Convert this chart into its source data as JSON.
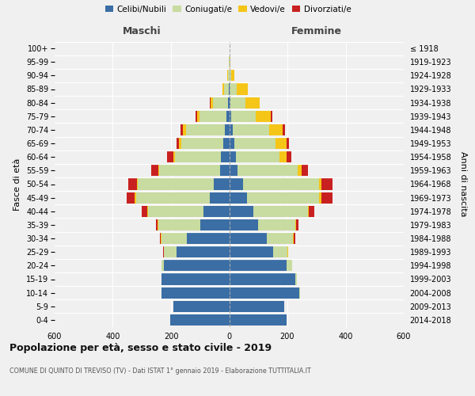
{
  "age_groups": [
    "100+",
    "95-99",
    "90-94",
    "85-89",
    "80-84",
    "75-79",
    "70-74",
    "65-69",
    "60-64",
    "55-59",
    "50-54",
    "45-49",
    "40-44",
    "35-39",
    "30-34",
    "25-29",
    "20-24",
    "15-19",
    "10-14",
    "5-9",
    "0-4"
  ],
  "birth_years": [
    "≤ 1918",
    "1919-1923",
    "1924-1928",
    "1929-1933",
    "1934-1938",
    "1939-1943",
    "1944-1948",
    "1949-1953",
    "1954-1958",
    "1959-1963",
    "1964-1968",
    "1969-1973",
    "1974-1978",
    "1979-1983",
    "1984-1988",
    "1989-1993",
    "1994-1998",
    "1999-2003",
    "2004-2008",
    "2009-2013",
    "2014-2018"
  ],
  "maschi": {
    "celibi": [
      0,
      0,
      0,
      2,
      4,
      10,
      16,
      20,
      28,
      32,
      52,
      68,
      88,
      98,
      145,
      182,
      225,
      232,
      232,
      192,
      202
    ],
    "coniugati": [
      0,
      1,
      5,
      15,
      52,
      92,
      132,
      145,
      158,
      208,
      262,
      252,
      192,
      145,
      88,
      42,
      8,
      2,
      0,
      0,
      0
    ],
    "vedovi": [
      0,
      0,
      1,
      5,
      8,
      8,
      10,
      8,
      5,
      4,
      4,
      4,
      2,
      2,
      2,
      1,
      0,
      0,
      0,
      0,
      0
    ],
    "divorziati": [
      0,
      0,
      0,
      0,
      2,
      5,
      8,
      8,
      22,
      25,
      28,
      28,
      18,
      8,
      4,
      2,
      0,
      0,
      0,
      0,
      0
    ]
  },
  "femmine": {
    "nubili": [
      0,
      0,
      1,
      2,
      4,
      6,
      12,
      18,
      22,
      28,
      48,
      62,
      82,
      98,
      128,
      152,
      198,
      228,
      242,
      188,
      198
    ],
    "coniugate": [
      0,
      1,
      6,
      25,
      52,
      85,
      125,
      142,
      152,
      208,
      262,
      248,
      188,
      130,
      92,
      48,
      18,
      4,
      2,
      0,
      0
    ],
    "vedove": [
      0,
      2,
      12,
      38,
      48,
      52,
      48,
      38,
      22,
      12,
      8,
      6,
      4,
      2,
      2,
      2,
      0,
      0,
      0,
      0,
      0
    ],
    "divorziate": [
      0,
      0,
      0,
      0,
      2,
      4,
      6,
      8,
      18,
      22,
      38,
      38,
      18,
      8,
      4,
      2,
      0,
      0,
      0,
      0,
      0
    ]
  },
  "colors": {
    "celibi_nubili": "#3a6ea5",
    "coniugati": "#c8dba0",
    "vedovi": "#f5c518",
    "divorziati": "#c82020"
  },
  "xlim": 600,
  "title": "Popolazione per età, sesso e stato civile - 2019",
  "subtitle": "COMUNE DI QUINTO DI TREVISO (TV) - Dati ISTAT 1° gennaio 2019 - Elaborazione TUTTITALIA.IT",
  "ylabel_left": "Fasce di età",
  "ylabel_right": "Anni di nascita",
  "label_maschi": "Maschi",
  "label_femmine": "Femmine",
  "legend_labels": [
    "Celibi/Nubili",
    "Coniugati/e",
    "Vedovi/e",
    "Divorziati/e"
  ],
  "bg_color": "#f0f0f0"
}
